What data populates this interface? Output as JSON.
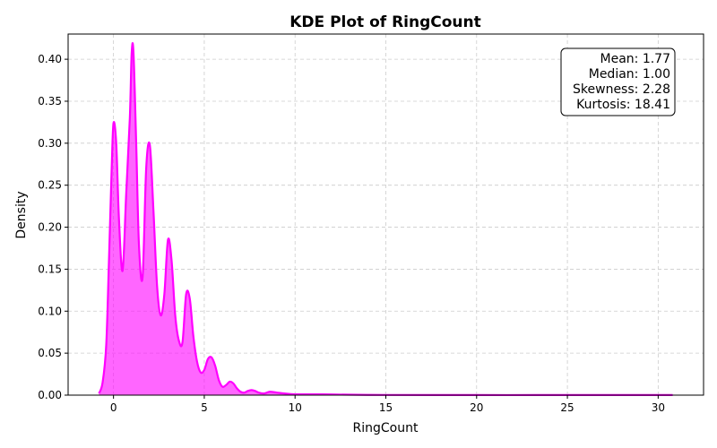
{
  "chart_data": {
    "type": "area",
    "title": "KDE Plot of RingCount",
    "xlabel": "RingCount",
    "ylabel": "Density",
    "xlim": [
      -2.5,
      32.5
    ],
    "ylim": [
      0,
      0.43
    ],
    "xticks": [
      0,
      5,
      10,
      15,
      20,
      25,
      30
    ],
    "yticks": [
      0.0,
      0.05,
      0.1,
      0.15,
      0.2,
      0.25,
      0.3,
      0.35,
      0.4
    ],
    "grid": true,
    "color": "#ff00ff",
    "series": [
      {
        "x": [
          -0.8,
          -0.6,
          -0.4,
          -0.25,
          -0.1,
          0.0,
          0.15,
          0.3,
          0.5,
          0.7,
          0.9,
          1.0,
          1.1,
          1.25,
          1.4,
          1.6,
          1.8,
          2.0,
          2.2,
          2.4,
          2.6,
          2.8,
          3.0,
          3.2,
          3.4,
          3.6,
          3.8,
          4.0,
          4.2,
          4.4,
          4.6,
          4.8,
          5.0,
          5.2,
          5.4,
          5.6,
          5.8,
          6.0,
          6.2,
          6.4,
          6.6,
          6.8,
          7.0,
          7.2,
          7.4,
          7.6,
          7.8,
          8.0,
          8.3,
          8.6,
          9.0,
          9.4,
          10.0,
          11.0,
          12.0,
          13.0,
          14.0,
          15.0,
          20.0,
          25.0,
          30.0,
          30.8
        ],
        "y": [
          0.002,
          0.015,
          0.06,
          0.16,
          0.27,
          0.324,
          0.3,
          0.21,
          0.148,
          0.24,
          0.33,
          0.407,
          0.408,
          0.3,
          0.18,
          0.14,
          0.27,
          0.298,
          0.22,
          0.13,
          0.095,
          0.12,
          0.185,
          0.16,
          0.095,
          0.065,
          0.063,
          0.12,
          0.115,
          0.07,
          0.04,
          0.027,
          0.03,
          0.043,
          0.045,
          0.035,
          0.018,
          0.01,
          0.012,
          0.016,
          0.014,
          0.008,
          0.004,
          0.003,
          0.005,
          0.006,
          0.005,
          0.003,
          0.002,
          0.004,
          0.003,
          0.002,
          0.001,
          0.001,
          0.0008,
          0.0005,
          0.0003,
          0.0002,
          0.0001,
          0.0001,
          0.0001,
          0.0001
        ]
      }
    ],
    "stats": {
      "mean": "Mean: 1.77",
      "median": "Median: 1.00",
      "skewness": "Skewness: 2.28",
      "kurtosis": "Kurtosis: 18.41"
    }
  }
}
